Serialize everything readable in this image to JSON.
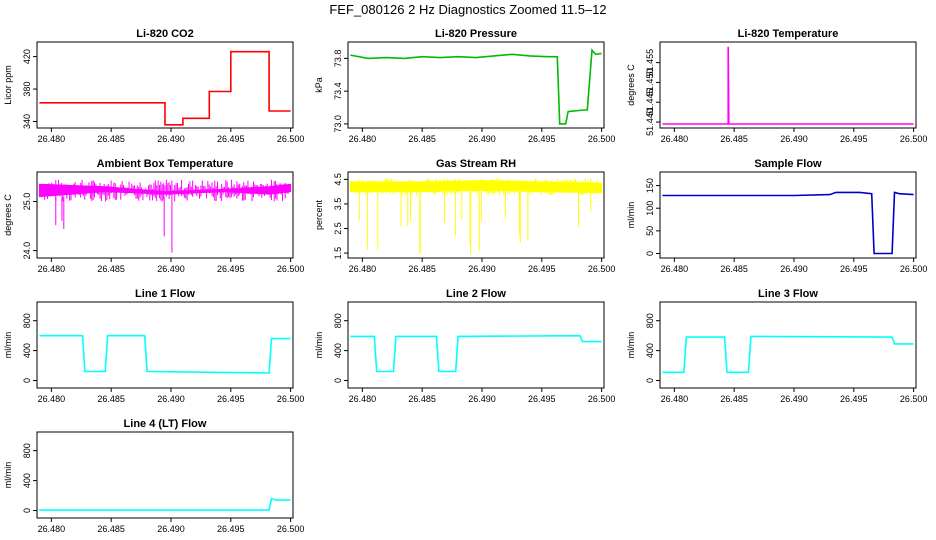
{
  "figure": {
    "title": "FEF_080126  2 Hz Diagnostics Zoomed 11.5–12"
  },
  "chart_data": [
    {
      "type": "line",
      "title": "Li-820 CO2",
      "ylabel": "Licor ppm",
      "color": "#ff0000",
      "x_ticks": [
        "26.480",
        "26.485",
        "26.490",
        "26.495",
        "26.500"
      ],
      "y_ticks": [
        "340",
        "380",
        "420"
      ],
      "y_tick_values": [
        340,
        380,
        420
      ],
      "xlim": [
        26.4788,
        26.5002
      ],
      "ylim": [
        332,
        438
      ],
      "series": [
        {
          "points": [
            [
              26.479,
              363
            ],
            [
              26.4895,
              363
            ],
            [
              26.4895,
              336
            ],
            [
              26.491,
              336
            ],
            [
              26.491,
              344
            ],
            [
              26.4932,
              344
            ],
            [
              26.4932,
              377
            ],
            [
              26.495,
              377
            ],
            [
              26.495,
              426
            ],
            [
              26.4982,
              426
            ],
            [
              26.4982,
              353
            ],
            [
              26.5,
              353
            ]
          ]
        }
      ]
    },
    {
      "type": "line",
      "title": "Li-820 Pressure",
      "ylabel": "kPa",
      "color": "#00bb00",
      "x_ticks": [
        "26.480",
        "26.485",
        "26.490",
        "26.495",
        "26.500"
      ],
      "y_ticks": [
        "73.0",
        "73.4",
        "73.8"
      ],
      "y_tick_values": [
        73.0,
        73.4,
        73.8
      ],
      "xlim": [
        26.4788,
        26.5002
      ],
      "ylim": [
        72.95,
        74.0
      ],
      "series": [
        {
          "points": [
            [
              26.479,
              73.84
            ],
            [
              26.4805,
              73.8
            ],
            [
              26.482,
              73.81
            ],
            [
              26.4835,
              73.8
            ],
            [
              26.485,
              73.82
            ],
            [
              26.4865,
              73.81
            ],
            [
              26.488,
              73.82
            ],
            [
              26.4895,
              73.81
            ],
            [
              26.491,
              73.83
            ],
            [
              26.4925,
              73.85
            ],
            [
              26.494,
              73.83
            ],
            [
              26.4955,
              73.82
            ],
            [
              26.4963,
              73.82
            ],
            [
              26.4965,
              73.0
            ],
            [
              26.497,
              73.0
            ],
            [
              26.4972,
              73.15
            ],
            [
              26.4985,
              73.17
            ],
            [
              26.4988,
              73.17
            ],
            [
              26.4992,
              73.9
            ],
            [
              26.4995,
              73.85
            ],
            [
              26.5,
              73.86
            ]
          ]
        }
      ]
    },
    {
      "type": "line",
      "title": "Li-820 Temperature",
      "ylabel": "degrees C",
      "color": "#ff00ff",
      "x_ticks": [
        "26.480",
        "26.485",
        "26.490",
        "26.495",
        "26.500"
      ],
      "y_ticks": [
        "51.440",
        "51.445",
        "51.450",
        "51.455"
      ],
      "y_tick_values": [
        51.44,
        51.445,
        51.45,
        51.455
      ],
      "xlim": [
        26.4788,
        26.5002
      ],
      "ylim": [
        51.4385,
        51.4602
      ],
      "series": [
        {
          "points": [
            [
              26.479,
              51.4395
            ],
            [
              26.4845,
              51.4395
            ],
            [
              26.4845,
              51.459
            ],
            [
              26.48455,
              51.4395
            ],
            [
              26.5,
              51.4395
            ]
          ]
        }
      ]
    },
    {
      "type": "line",
      "title": "Ambient Box Temperature",
      "ylabel": "degrees C",
      "color": "#ff00ff",
      "x_ticks": [
        "26.480",
        "26.485",
        "26.490",
        "26.495",
        "26.500"
      ],
      "y_ticks": [
        "24.0",
        "25.0"
      ],
      "y_tick_values": [
        24.0,
        25.0
      ],
      "xlim": [
        26.4788,
        26.5002
      ],
      "ylim": [
        23.85,
        25.6
      ],
      "series": [
        {
          "name": "",
          "points": [
            [
              26.479,
              25.1
            ],
            [
              26.4845,
              25.2
            ],
            [
              26.4895,
              25.15
            ],
            [
              26.4945,
              25.2
            ],
            [
              26.4982,
              25.15
            ],
            [
              26.5,
              25.2
            ]
          ]
        },
        {
          "name": "",
          "points": [
            [
              26.479,
              25.35
            ],
            [
              26.4845,
              25.3
            ],
            [
              26.4895,
              25.2
            ],
            [
              26.4945,
              25.25
            ],
            [
              26.4982,
              25.3
            ],
            [
              26.5,
              25.35
            ]
          ]
        }
      ]
    },
    {
      "type": "line",
      "title": "Gas Stream RH",
      "ylabel": "percent",
      "color": "#ffff00",
      "x_ticks": [
        "26.480",
        "26.485",
        "26.490",
        "26.495",
        "26.500"
      ],
      "y_ticks": [
        "1.5",
        "2.5",
        "3.5",
        "4.5"
      ],
      "y_tick_values": [
        1.5,
        2.5,
        3.5,
        4.5
      ],
      "xlim": [
        26.4788,
        26.5002
      ],
      "ylim": [
        1.3,
        4.8
      ],
      "series": [
        {
          "name": "",
          "points": [
            [
              26.479,
              4.0
            ],
            [
              26.485,
              4.0
            ],
            [
              26.49,
              4.05
            ],
            [
              26.495,
              4.0
            ],
            [
              26.5,
              3.95
            ]
          ]
        },
        {
          "name": "",
          "points": [
            [
              26.479,
              4.4
            ],
            [
              26.485,
              4.4
            ],
            [
              26.49,
              4.45
            ],
            [
              26.495,
              4.4
            ],
            [
              26.5,
              4.35
            ]
          ]
        }
      ]
    },
    {
      "type": "line",
      "title": "Sample Flow",
      "ylabel": "ml/min",
      "color": "#0000cc",
      "x_ticks": [
        "26.480",
        "26.485",
        "26.490",
        "26.495",
        "26.500"
      ],
      "y_ticks": [
        "0",
        "50",
        "100",
        "150"
      ],
      "y_tick_values": [
        0,
        50,
        100,
        150
      ],
      "xlim": [
        26.4788,
        26.5002
      ],
      "ylim": [
        -10,
        180
      ],
      "series": [
        {
          "points": [
            [
              26.479,
              128
            ],
            [
              26.485,
              128
            ],
            [
              26.49,
              128
            ],
            [
              26.493,
              130
            ],
            [
              26.4935,
              135
            ],
            [
              26.4955,
              135
            ],
            [
              26.4965,
              132
            ],
            [
              26.4967,
              0
            ],
            [
              26.4982,
              0
            ],
            [
              26.4984,
              135
            ],
            [
              26.4988,
              132
            ],
            [
              26.5,
              130
            ]
          ]
        }
      ]
    },
    {
      "type": "line",
      "title": "Line 1 Flow",
      "ylabel": "ml/min",
      "color": "#00ffff",
      "x_ticks": [
        "26.480",
        "26.485",
        "26.490",
        "26.495",
        "26.500"
      ],
      "y_ticks": [
        "0",
        "400",
        "800"
      ],
      "y_tick_values": [
        0,
        400,
        800
      ],
      "xlim": [
        26.4788,
        26.5002
      ],
      "ylim": [
        -100,
        1050
      ],
      "series": [
        {
          "points": [
            [
              26.479,
              600
            ],
            [
              26.4826,
              600
            ],
            [
              26.4828,
              120
            ],
            [
              26.4845,
              120
            ],
            [
              26.4847,
              600
            ],
            [
              26.4878,
              600
            ],
            [
              26.488,
              120
            ],
            [
              26.4982,
              100
            ],
            [
              26.4984,
              560
            ],
            [
              26.5,
              560
            ]
          ]
        }
      ]
    },
    {
      "type": "line",
      "title": "Line 2 Flow",
      "ylabel": "ml/min",
      "color": "#00ffff",
      "x_ticks": [
        "26.480",
        "26.485",
        "26.490",
        "26.495",
        "26.500"
      ],
      "y_ticks": [
        "0",
        "400",
        "800"
      ],
      "y_tick_values": [
        0,
        400,
        800
      ],
      "xlim": [
        26.4788,
        26.5002
      ],
      "ylim": [
        -100,
        1050
      ],
      "series": [
        {
          "points": [
            [
              26.479,
              590
            ],
            [
              26.481,
              590
            ],
            [
              26.4812,
              120
            ],
            [
              26.4826,
              120
            ],
            [
              26.4828,
              590
            ],
            [
              26.4862,
              590
            ],
            [
              26.4864,
              120
            ],
            [
              26.4878,
              120
            ],
            [
              26.488,
              590
            ],
            [
              26.4982,
              600
            ],
            [
              26.4984,
              520
            ],
            [
              26.5,
              520
            ]
          ]
        }
      ]
    },
    {
      "type": "line",
      "title": "Line 3 Flow",
      "ylabel": "ml/min",
      "color": "#00ffff",
      "x_ticks": [
        "26.480",
        "26.485",
        "26.490",
        "26.495",
        "26.500"
      ],
      "y_ticks": [
        "0",
        "400",
        "800"
      ],
      "y_tick_values": [
        0,
        400,
        800
      ],
      "xlim": [
        26.4788,
        26.5002
      ],
      "ylim": [
        -100,
        1050
      ],
      "series": [
        {
          "points": [
            [
              26.479,
              110
            ],
            [
              26.4808,
              110
            ],
            [
              26.481,
              580
            ],
            [
              26.4842,
              580
            ],
            [
              26.4844,
              110
            ],
            [
              26.4862,
              110
            ],
            [
              26.4864,
              590
            ],
            [
              26.4982,
              580
            ],
            [
              26.4984,
              490
            ],
            [
              26.5,
              490
            ]
          ]
        }
      ]
    },
    {
      "type": "line",
      "title": "Line 4 (LT) Flow",
      "ylabel": "ml/min",
      "color": "#00ffff",
      "x_ticks": [
        "26.480",
        "26.485",
        "26.490",
        "26.495",
        "26.500"
      ],
      "y_ticks": [
        "0",
        "400",
        "800"
      ],
      "y_tick_values": [
        0,
        400,
        800
      ],
      "xlim": [
        26.4788,
        26.5002
      ],
      "ylim": [
        -100,
        1050
      ],
      "series": [
        {
          "points": [
            [
              26.479,
              5
            ],
            [
              26.4982,
              5
            ],
            [
              26.4984,
              160
            ],
            [
              26.4988,
              140
            ],
            [
              26.5,
              140
            ]
          ]
        }
      ]
    }
  ]
}
